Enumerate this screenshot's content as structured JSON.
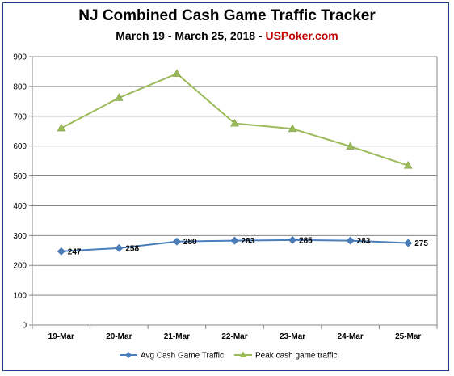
{
  "chart_data": {
    "type": "line",
    "title": "NJ Combined Cash Game Traffic Tracker",
    "subtitle_prefix": "March 19 - March 25, 2018 - ",
    "subtitle_brand": "USPoker.com",
    "categories": [
      "19-Mar",
      "20-Mar",
      "21-Mar",
      "22-Mar",
      "23-Mar",
      "24-Mar",
      "25-Mar"
    ],
    "ylim": [
      0,
      900
    ],
    "yticks": [
      "0",
      "100",
      "200",
      "300",
      "400",
      "500",
      "600",
      "700",
      "800",
      "900"
    ],
    "grid": true,
    "legend_position": "bottom",
    "series": [
      {
        "name": "Avg Cash Game Traffic",
        "values": [
          247,
          258,
          280,
          283,
          285,
          283,
          275
        ],
        "labels": [
          "247",
          "258",
          "280",
          "283",
          "285",
          "283",
          "275"
        ],
        "color": "#4a7ebb",
        "marker": "diamond"
      },
      {
        "name": "Peak cash game traffic",
        "values": [
          660,
          762,
          843,
          676,
          658,
          599,
          535
        ],
        "color": "#9bbb59",
        "marker": "triangle"
      }
    ]
  }
}
